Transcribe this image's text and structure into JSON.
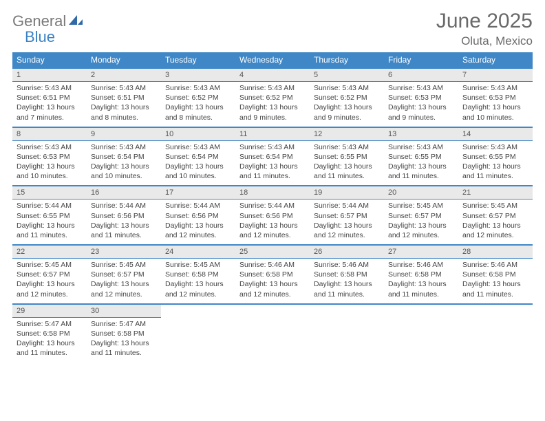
{
  "brand": {
    "word1": "General",
    "word2": "Blue"
  },
  "title": "June 2025",
  "location": "Oluta, Mexico",
  "colors": {
    "header_bg": "#3f87c6",
    "daynum_bg": "#e9e9e9",
    "text": "#444444",
    "title_color": "#6a6a6a"
  },
  "day_headers": [
    "Sunday",
    "Monday",
    "Tuesday",
    "Wednesday",
    "Thursday",
    "Friday",
    "Saturday"
  ],
  "weeks": [
    [
      {
        "n": "1",
        "sunrise": "5:43 AM",
        "sunset": "6:51 PM",
        "daylight": "13 hours and 7 minutes."
      },
      {
        "n": "2",
        "sunrise": "5:43 AM",
        "sunset": "6:51 PM",
        "daylight": "13 hours and 8 minutes."
      },
      {
        "n": "3",
        "sunrise": "5:43 AM",
        "sunset": "6:52 PM",
        "daylight": "13 hours and 8 minutes."
      },
      {
        "n": "4",
        "sunrise": "5:43 AM",
        "sunset": "6:52 PM",
        "daylight": "13 hours and 9 minutes."
      },
      {
        "n": "5",
        "sunrise": "5:43 AM",
        "sunset": "6:52 PM",
        "daylight": "13 hours and 9 minutes."
      },
      {
        "n": "6",
        "sunrise": "5:43 AM",
        "sunset": "6:53 PM",
        "daylight": "13 hours and 9 minutes."
      },
      {
        "n": "7",
        "sunrise": "5:43 AM",
        "sunset": "6:53 PM",
        "daylight": "13 hours and 10 minutes."
      }
    ],
    [
      {
        "n": "8",
        "sunrise": "5:43 AM",
        "sunset": "6:53 PM",
        "daylight": "13 hours and 10 minutes."
      },
      {
        "n": "9",
        "sunrise": "5:43 AM",
        "sunset": "6:54 PM",
        "daylight": "13 hours and 10 minutes."
      },
      {
        "n": "10",
        "sunrise": "5:43 AM",
        "sunset": "6:54 PM",
        "daylight": "13 hours and 10 minutes."
      },
      {
        "n": "11",
        "sunrise": "5:43 AM",
        "sunset": "6:54 PM",
        "daylight": "13 hours and 11 minutes."
      },
      {
        "n": "12",
        "sunrise": "5:43 AM",
        "sunset": "6:55 PM",
        "daylight": "13 hours and 11 minutes."
      },
      {
        "n": "13",
        "sunrise": "5:43 AM",
        "sunset": "6:55 PM",
        "daylight": "13 hours and 11 minutes."
      },
      {
        "n": "14",
        "sunrise": "5:43 AM",
        "sunset": "6:55 PM",
        "daylight": "13 hours and 11 minutes."
      }
    ],
    [
      {
        "n": "15",
        "sunrise": "5:44 AM",
        "sunset": "6:55 PM",
        "daylight": "13 hours and 11 minutes."
      },
      {
        "n": "16",
        "sunrise": "5:44 AM",
        "sunset": "6:56 PM",
        "daylight": "13 hours and 11 minutes."
      },
      {
        "n": "17",
        "sunrise": "5:44 AM",
        "sunset": "6:56 PM",
        "daylight": "13 hours and 12 minutes."
      },
      {
        "n": "18",
        "sunrise": "5:44 AM",
        "sunset": "6:56 PM",
        "daylight": "13 hours and 12 minutes."
      },
      {
        "n": "19",
        "sunrise": "5:44 AM",
        "sunset": "6:57 PM",
        "daylight": "13 hours and 12 minutes."
      },
      {
        "n": "20",
        "sunrise": "5:45 AM",
        "sunset": "6:57 PM",
        "daylight": "13 hours and 12 minutes."
      },
      {
        "n": "21",
        "sunrise": "5:45 AM",
        "sunset": "6:57 PM",
        "daylight": "13 hours and 12 minutes."
      }
    ],
    [
      {
        "n": "22",
        "sunrise": "5:45 AM",
        "sunset": "6:57 PM",
        "daylight": "13 hours and 12 minutes."
      },
      {
        "n": "23",
        "sunrise": "5:45 AM",
        "sunset": "6:57 PM",
        "daylight": "13 hours and 12 minutes."
      },
      {
        "n": "24",
        "sunrise": "5:45 AM",
        "sunset": "6:58 PM",
        "daylight": "13 hours and 12 minutes."
      },
      {
        "n": "25",
        "sunrise": "5:46 AM",
        "sunset": "6:58 PM",
        "daylight": "13 hours and 12 minutes."
      },
      {
        "n": "26",
        "sunrise": "5:46 AM",
        "sunset": "6:58 PM",
        "daylight": "13 hours and 11 minutes."
      },
      {
        "n": "27",
        "sunrise": "5:46 AM",
        "sunset": "6:58 PM",
        "daylight": "13 hours and 11 minutes."
      },
      {
        "n": "28",
        "sunrise": "5:46 AM",
        "sunset": "6:58 PM",
        "daylight": "13 hours and 11 minutes."
      }
    ],
    [
      {
        "n": "29",
        "sunrise": "5:47 AM",
        "sunset": "6:58 PM",
        "daylight": "13 hours and 11 minutes."
      },
      {
        "n": "30",
        "sunrise": "5:47 AM",
        "sunset": "6:58 PM",
        "daylight": "13 hours and 11 minutes."
      },
      null,
      null,
      null,
      null,
      null
    ]
  ],
  "labels": {
    "sunrise": "Sunrise: ",
    "sunset": "Sunset: ",
    "daylight": "Daylight: "
  }
}
